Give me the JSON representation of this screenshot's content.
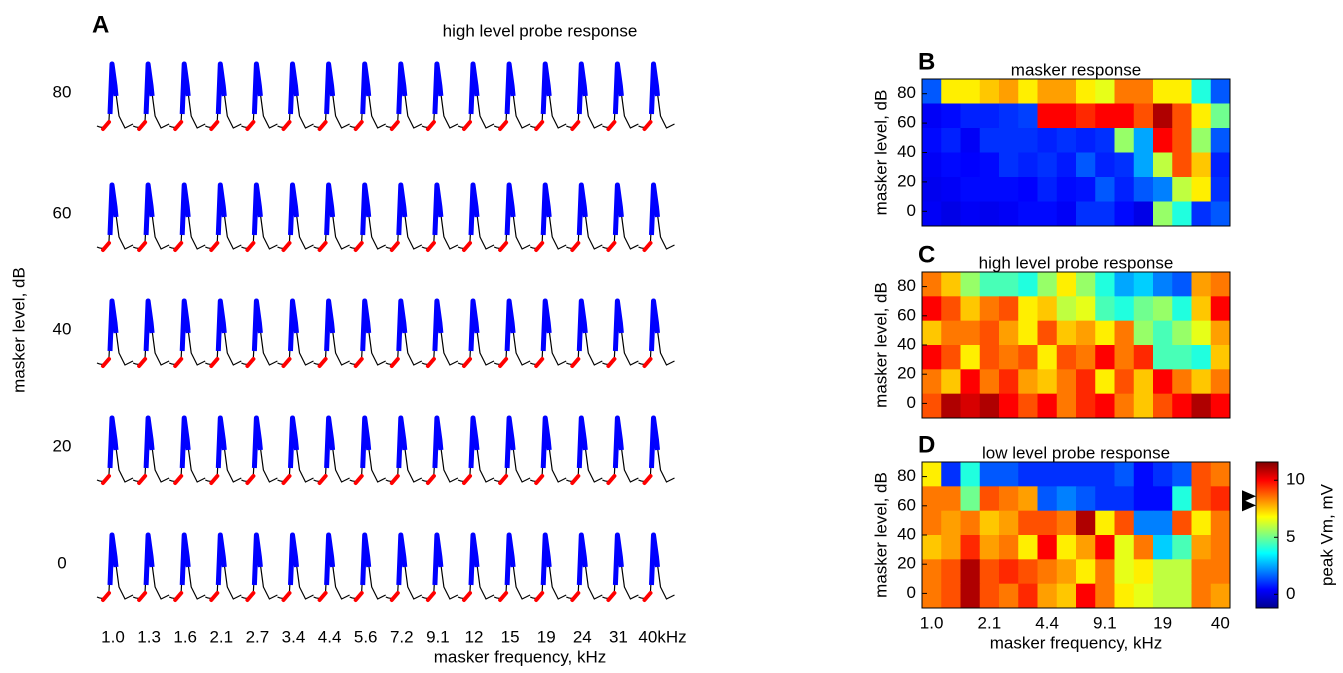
{
  "chart_data": [
    {
      "type": "traces",
      "panel_label": "A",
      "title": "high level probe response",
      "xlabel": "masker frequency, kHz",
      "ylabel": "masker level, dB",
      "categories": [
        "1.0",
        "1.3",
        "1.6",
        "2.1",
        "2.7",
        "3.4",
        "4.4",
        "5.6",
        "7.2",
        "9.1",
        "12",
        "15",
        "19",
        "24",
        "31",
        "40kHz"
      ],
      "rows": [
        80,
        60,
        40,
        20,
        0
      ]
    },
    {
      "type": "heatmap",
      "panel_label": "B",
      "title": "masker response",
      "ylabel": "masker level, dB",
      "ylim": [
        -10,
        90
      ],
      "yticks": [
        0,
        20,
        40,
        60,
        80
      ],
      "values": [
        [
          1.5,
          7,
          7,
          7.5,
          8,
          7,
          8,
          8,
          7,
          6.5,
          8.5,
          8.5,
          7,
          7,
          4,
          1.5
        ],
        [
          0.3,
          0.5,
          0.8,
          0.8,
          1,
          1.2,
          10,
          10,
          9.5,
          10,
          10,
          9,
          11,
          9,
          7,
          5
        ],
        [
          0.5,
          0.8,
          0.3,
          1,
          1,
          1,
          0.8,
          1,
          0.8,
          1,
          5.5,
          2.5,
          10,
          9,
          5.5,
          1.5
        ],
        [
          0.3,
          0.5,
          0.4,
          0.5,
          1,
          0.8,
          1,
          0.7,
          1.5,
          0.8,
          1,
          2.5,
          6,
          9,
          7.5,
          0.8
        ],
        [
          0.2,
          0.3,
          0.5,
          0.5,
          0.5,
          0.4,
          0.8,
          0.5,
          0.6,
          1.5,
          0.8,
          1.5,
          2,
          6,
          7,
          1
        ],
        [
          0.3,
          0.1,
          0.3,
          0.2,
          0.3,
          0.5,
          0.5,
          0.3,
          1,
          1,
          0.5,
          0.1,
          5.5,
          4,
          1,
          1.5
        ]
      ]
    },
    {
      "type": "heatmap",
      "panel_label": "C",
      "title": "high level probe response",
      "ylabel": "masker level, dB",
      "ylim": [
        -10,
        90
      ],
      "yticks": [
        0,
        20,
        40,
        60,
        80
      ],
      "values": [
        [
          8.5,
          7.5,
          5.5,
          4.5,
          4.5,
          4,
          5.5,
          7,
          5.5,
          4,
          2.5,
          3,
          2,
          1.5,
          8,
          8.5
        ],
        [
          10,
          9,
          7.5,
          8.5,
          9,
          7,
          7.5,
          6,
          6.5,
          4.5,
          4,
          5,
          5.5,
          4,
          7.5,
          10
        ],
        [
          7.5,
          8.5,
          8.5,
          9,
          8,
          7,
          9,
          7.5,
          8,
          7,
          8.5,
          5.5,
          4.5,
          5.5,
          6.5,
          8
        ],
        [
          10,
          9,
          7,
          9,
          8.5,
          9,
          7,
          9,
          8.5,
          10,
          8.5,
          9.5,
          4.5,
          4.5,
          4,
          7.5
        ],
        [
          8.5,
          7.5,
          10,
          8.5,
          9.5,
          8,
          7.5,
          8.5,
          9.5,
          7,
          9,
          7.5,
          10,
          8.5,
          7.5,
          8.5
        ],
        [
          9,
          11,
          10.5,
          11,
          10,
          9,
          10,
          8.5,
          9.5,
          10,
          8.5,
          7.5,
          9,
          10,
          11,
          10
        ]
      ]
    },
    {
      "type": "heatmap",
      "panel_label": "D",
      "title": "low level probe response",
      "ylabel": "masker level, dB",
      "xlabel": "masker frequency, kHz",
      "ylim": [
        -10,
        90
      ],
      "yticks": [
        0,
        20,
        40,
        60,
        80
      ],
      "categories": [
        "1.0",
        null,
        null,
        "2.1",
        null,
        null,
        "4.4",
        null,
        null,
        "9.1",
        null,
        null,
        "19",
        null,
        null,
        "40"
      ],
      "values": [
        [
          7,
          1,
          4,
          1.5,
          1.5,
          1,
          1,
          1,
          1,
          1,
          1.5,
          0.5,
          1,
          1.5,
          9,
          8.5
        ],
        [
          8.5,
          8.5,
          5,
          9,
          8.5,
          8,
          1.5,
          2,
          1.5,
          1,
          1,
          0.5,
          0.5,
          4,
          9,
          9.5
        ],
        [
          8.5,
          8,
          8.5,
          7.5,
          8,
          9,
          9,
          8.5,
          11,
          7,
          9,
          2,
          2,
          9,
          7,
          8.5
        ],
        [
          7.5,
          8,
          9.5,
          8,
          8.5,
          7,
          10,
          7,
          8,
          10,
          6.5,
          8.5,
          3,
          4.5,
          8,
          8.5
        ],
        [
          8.5,
          9,
          11,
          9,
          9.5,
          9,
          8.5,
          8,
          7,
          8.5,
          6.5,
          7,
          6,
          6,
          8.5,
          8.5
        ],
        [
          8.5,
          9,
          11,
          9,
          8.5,
          9.5,
          8,
          7.5,
          10,
          8.5,
          7,
          6.5,
          6,
          6,
          8.5,
          8
        ]
      ],
      "colorbar": {
        "label": "peak Vm, mV",
        "clim": [
          -1.2,
          11.6
        ],
        "ticks": [
          0,
          5,
          10
        ],
        "colormap": "jet",
        "markers": [
          8.6,
          7.8
        ]
      }
    }
  ]
}
